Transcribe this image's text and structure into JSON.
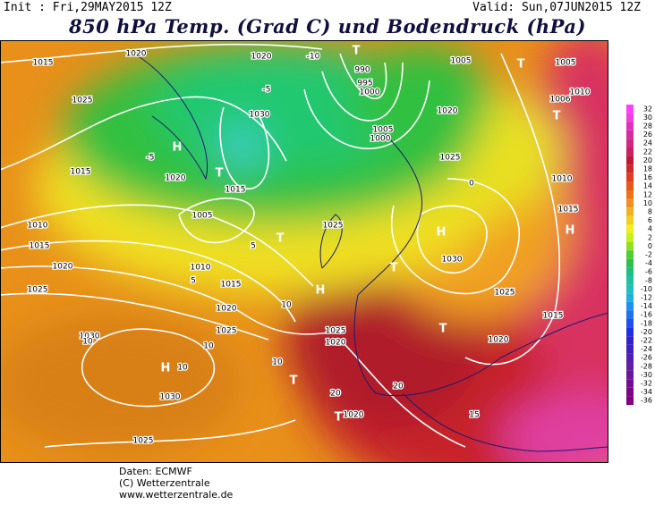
{
  "header": {
    "init": "Init : Fri,29MAY2015 12Z",
    "valid": "Valid: Sun,07JUN2015 12Z",
    "title": "850 hPa Temp. (Grad C) und Bodendruck (hPa)"
  },
  "footer": [
    "Daten: ECMWF",
    "(C) Wetterzentrale",
    "www.wetterzentrale.de"
  ],
  "colorbar": {
    "ticks": [
      32,
      30,
      28,
      26,
      24,
      22,
      20,
      18,
      16,
      14,
      12,
      10,
      8,
      6,
      4,
      2,
      0,
      -2,
      -4,
      -6,
      -8,
      -10,
      -12,
      -14,
      -16,
      -18,
      -20,
      -22,
      -24,
      -26,
      -28,
      -30,
      -32,
      -34,
      -36
    ],
    "colors": [
      "#ff40ff",
      "#f040e0",
      "#e030c0",
      "#d82aa0",
      "#d02880",
      "#c82060",
      "#c01838",
      "#d02828",
      "#e03c20",
      "#e85818",
      "#f07018",
      "#f09020",
      "#f0b020",
      "#f0d020",
      "#f0f020",
      "#c8f020",
      "#90e020",
      "#50d030",
      "#30c050",
      "#20c080",
      "#20c0a0",
      "#20c0c0",
      "#20b0e0",
      "#2090f0",
      "#2070f0",
      "#2050f0",
      "#2030e0",
      "#3020d0",
      "#4020c0",
      "#5020b0",
      "#6020a0",
      "#6a1898",
      "#701090",
      "#780888",
      "#800080"
    ]
  },
  "map": {
    "labels": [
      "1015",
      "1020",
      "1025",
      "1020",
      "-10",
      "T",
      "990",
      "995",
      "1000",
      "1005",
      "T",
      "1005",
      "1010",
      "1006",
      "T",
      "H",
      "1015",
      "1020",
      "T",
      "1015",
      "1010",
      "1015",
      "1020",
      "1025",
      "H",
      "1030",
      "1025",
      "1015",
      "1030",
      "H",
      "10",
      "1030",
      "T",
      "1020",
      "T",
      "1025",
      "1020",
      "1015",
      "H",
      "1010",
      "1025",
      "1020",
      "1005",
      "1000",
      "1025",
      "H",
      "T",
      "T",
      "1010",
      "1015",
      "1020",
      "1025",
      "1025",
      "1020",
      "T",
      "15",
      "20",
      "20",
      "10",
      "10",
      "10",
      "10",
      "-5",
      "-5",
      "1030",
      "-10",
      "0",
      "5",
      "5",
      "1005"
    ]
  }
}
